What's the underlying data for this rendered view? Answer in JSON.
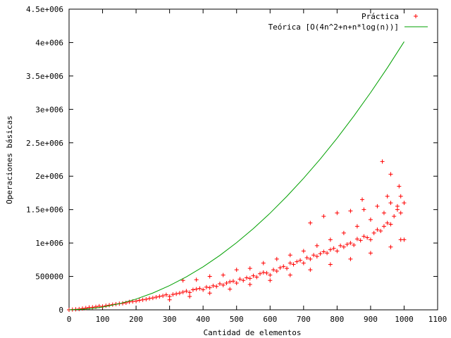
{
  "chart_data": {
    "type": "scatter",
    "title": "",
    "xlabel": "Cantidad de elementos",
    "ylabel": "Operaciones básicas",
    "xlim": [
      0,
      1100
    ],
    "ylim": [
      0,
      4500000
    ],
    "x_ticks": [
      {
        "value": 0,
        "label": "0"
      },
      {
        "value": 100,
        "label": "100"
      },
      {
        "value": 200,
        "label": "200"
      },
      {
        "value": 300,
        "label": "300"
      },
      {
        "value": 400,
        "label": "400"
      },
      {
        "value": 500,
        "label": "500"
      },
      {
        "value": 600,
        "label": "600"
      },
      {
        "value": 700,
        "label": "700"
      },
      {
        "value": 800,
        "label": "800"
      },
      {
        "value": 900,
        "label": "900"
      },
      {
        "value": 1000,
        "label": "1000"
      },
      {
        "value": 1100,
        "label": "1100"
      }
    ],
    "y_ticks": [
      {
        "value": 0,
        "label": "0"
      },
      {
        "value": 500000,
        "label": "500000"
      },
      {
        "value": 1000000,
        "label": "1e+006"
      },
      {
        "value": 1500000,
        "label": "1.5e+006"
      },
      {
        "value": 2000000,
        "label": "2e+006"
      },
      {
        "value": 2500000,
        "label": "2.5e+006"
      },
      {
        "value": 3000000,
        "label": "3e+006"
      },
      {
        "value": 3500000,
        "label": "3.5e+006"
      },
      {
        "value": 4000000,
        "label": "4e+006"
      },
      {
        "value": 4500000,
        "label": "4.5e+006"
      }
    ],
    "grid": false,
    "legend_position": "top-right",
    "series": [
      {
        "name": "Práctica",
        "kind": "scatter",
        "marker": "+",
        "color": "#ff0000",
        "points": [
          [
            0,
            0
          ],
          [
            10,
            4000
          ],
          [
            20,
            8000
          ],
          [
            30,
            12000
          ],
          [
            40,
            20000
          ],
          [
            50,
            27000
          ],
          [
            60,
            35000
          ],
          [
            70,
            38000
          ],
          [
            80,
            45000
          ],
          [
            90,
            55000
          ],
          [
            100,
            50000
          ],
          [
            110,
            62000
          ],
          [
            120,
            70000
          ],
          [
            130,
            78000
          ],
          [
            140,
            85000
          ],
          [
            150,
            92000
          ],
          [
            160,
            98000
          ],
          [
            170,
            105000
          ],
          [
            180,
            118000
          ],
          [
            190,
            125000
          ],
          [
            200,
            130000
          ],
          [
            210,
            142000
          ],
          [
            220,
            150000
          ],
          [
            230,
            158000
          ],
          [
            240,
            170000
          ],
          [
            250,
            178000
          ],
          [
            260,
            190000
          ],
          [
            270,
            200000
          ],
          [
            280,
            210000
          ],
          [
            290,
            225000
          ],
          [
            300,
            200000
          ],
          [
            310,
            230000
          ],
          [
            320,
            240000
          ],
          [
            330,
            250000
          ],
          [
            340,
            265000
          ],
          [
            350,
            280000
          ],
          [
            360,
            260000
          ],
          [
            370,
            300000
          ],
          [
            380,
            310000
          ],
          [
            390,
            320000
          ],
          [
            400,
            300000
          ],
          [
            410,
            340000
          ],
          [
            420,
            330000
          ],
          [
            430,
            360000
          ],
          [
            440,
            350000
          ],
          [
            450,
            390000
          ],
          [
            460,
            370000
          ],
          [
            470,
            400000
          ],
          [
            480,
            420000
          ],
          [
            490,
            430000
          ],
          [
            500,
            400000
          ],
          [
            510,
            460000
          ],
          [
            520,
            440000
          ],
          [
            530,
            480000
          ],
          [
            540,
            470000
          ],
          [
            550,
            510000
          ],
          [
            560,
            490000
          ],
          [
            570,
            540000
          ],
          [
            580,
            560000
          ],
          [
            590,
            550000
          ],
          [
            600,
            520000
          ],
          [
            610,
            600000
          ],
          [
            620,
            580000
          ],
          [
            630,
            630000
          ],
          [
            640,
            650000
          ],
          [
            650,
            620000
          ],
          [
            660,
            700000
          ],
          [
            670,
            680000
          ],
          [
            680,
            720000
          ],
          [
            690,
            740000
          ],
          [
            700,
            700000
          ],
          [
            710,
            780000
          ],
          [
            720,
            760000
          ],
          [
            730,
            820000
          ],
          [
            740,
            800000
          ],
          [
            750,
            840000
          ],
          [
            760,
            870000
          ],
          [
            770,
            850000
          ],
          [
            780,
            900000
          ],
          [
            790,
            920000
          ],
          [
            800,
            880000
          ],
          [
            810,
            960000
          ],
          [
            820,
            940000
          ],
          [
            830,
            980000
          ],
          [
            840,
            1000000
          ],
          [
            850,
            970000
          ],
          [
            860,
            1060000
          ],
          [
            870,
            1040000
          ],
          [
            880,
            1100000
          ],
          [
            890,
            1080000
          ],
          [
            900,
            1050000
          ],
          [
            910,
            1150000
          ],
          [
            920,
            1200000
          ],
          [
            930,
            1180000
          ],
          [
            940,
            1250000
          ],
          [
            950,
            1300000
          ],
          [
            960,
            1280000
          ],
          [
            970,
            1400000
          ],
          [
            980,
            1500000
          ],
          [
            990,
            1450000
          ],
          [
            1000,
            1600000
          ],
          [
            340,
            440000
          ],
          [
            380,
            450000
          ],
          [
            420,
            500000
          ],
          [
            460,
            520000
          ],
          [
            500,
            600000
          ],
          [
            540,
            620000
          ],
          [
            580,
            700000
          ],
          [
            620,
            760000
          ],
          [
            660,
            820000
          ],
          [
            700,
            880000
          ],
          [
            740,
            960000
          ],
          [
            780,
            1050000
          ],
          [
            820,
            1150000
          ],
          [
            860,
            1250000
          ],
          [
            900,
            1350000
          ],
          [
            940,
            1450000
          ],
          [
            980,
            1550000
          ],
          [
            720,
            1300000
          ],
          [
            760,
            1400000
          ],
          [
            800,
            1450000
          ],
          [
            840,
            1480000
          ],
          [
            880,
            1500000
          ],
          [
            920,
            1550000
          ],
          [
            960,
            1600000
          ],
          [
            990,
            1700000
          ],
          [
            875,
            1650000
          ],
          [
            950,
            1700000
          ],
          [
            985,
            1850000
          ],
          [
            960,
            2030000
          ],
          [
            935,
            2220000
          ],
          [
            300,
            150000
          ],
          [
            360,
            200000
          ],
          [
            420,
            250000
          ],
          [
            480,
            310000
          ],
          [
            540,
            380000
          ],
          [
            600,
            440000
          ],
          [
            660,
            520000
          ],
          [
            720,
            600000
          ],
          [
            780,
            680000
          ],
          [
            840,
            760000
          ],
          [
            900,
            850000
          ],
          [
            960,
            940000
          ],
          [
            990,
            1050000
          ],
          [
            1000,
            1050000
          ]
        ]
      },
      {
        "name": "Teórica [O(4n^2+n+n*log(n))]",
        "kind": "line",
        "color": "#00a000",
        "points": [
          [
            0,
            0
          ],
          [
            50,
            10299
          ],
          [
            100,
            40766
          ],
          [
            150,
            91236
          ],
          [
            200,
            161729
          ],
          [
            250,
            252247
          ],
          [
            300,
            362792
          ],
          [
            350,
            493364
          ],
          [
            400,
            643963
          ],
          [
            450,
            814588
          ],
          [
            500,
            1005240
          ],
          [
            550,
            1215917
          ],
          [
            600,
            1446620
          ],
          [
            650,
            1697349
          ],
          [
            700,
            1968102
          ],
          [
            750,
            2258880
          ],
          [
            800,
            2569682
          ],
          [
            850,
            2900509
          ],
          [
            900,
            3251359
          ],
          [
            950,
            3622233
          ],
          [
            1000,
            4013130
          ]
        ]
      }
    ]
  }
}
